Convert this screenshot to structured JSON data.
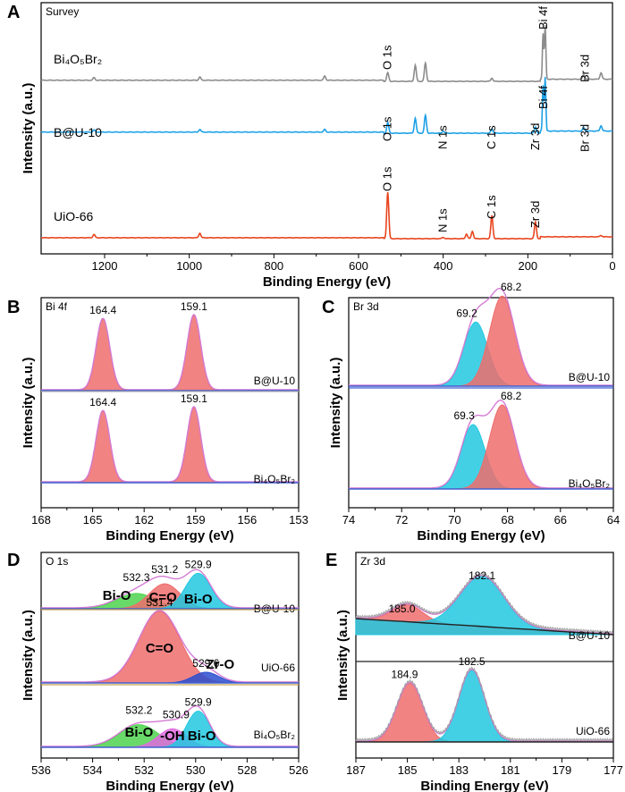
{
  "figure": {
    "colors": {
      "gray": "#8c8c8c",
      "blue": "#1ea1e6",
      "red": "#e8451e",
      "red_fill": "#ee6d6d",
      "cyan_fill": "#22c8e0",
      "green_fill": "#4fd34f",
      "violet_fill": "#e06ae0",
      "blue_fill": "#2a4fd0",
      "envelope": "#d47bd4",
      "baseline": "#4060d0",
      "gray_curve": "#a0a0a0"
    }
  },
  "chart_data": [
    {
      "panel": "A",
      "type": "line",
      "tag": "Survey",
      "xlabel": "Binding Energy (eV)",
      "ylabel": "Intensity (a.u.)",
      "xlim": [
        1350,
        0
      ],
      "xticks": [
        "1200",
        "1000",
        "800",
        "600",
        "400",
        "200",
        "0"
      ],
      "series": [
        {
          "name": "Bi₄O₅Br₂",
          "color": "gray",
          "peaks": [
            {
              "x": 1225,
              "h": 0.05
            },
            {
              "x": 975,
              "h": 0.06
            },
            {
              "x": 680,
              "h": 0.08
            },
            {
              "x": 531,
              "h": 0.16
            },
            {
              "x": 466,
              "h": 0.3
            },
            {
              "x": 442,
              "h": 0.34
            },
            {
              "x": 285,
              "h": 0.06
            },
            {
              "x": 159,
              "h": 1.0
            },
            {
              "x": 164,
              "h": 0.85
            },
            {
              "x": 68,
              "h": 0.08
            },
            {
              "x": 27,
              "h": 0.12
            }
          ],
          "annotations": [
            "O 1s",
            "Bi 4f",
            "Br 3d"
          ]
        },
        {
          "name": "B@U-10",
          "color": "blue",
          "peaks": [
            {
              "x": 1225,
              "h": 0.04
            },
            {
              "x": 975,
              "h": 0.05
            },
            {
              "x": 680,
              "h": 0.05
            },
            {
              "x": 531,
              "h": 0.2
            },
            {
              "x": 466,
              "h": 0.28
            },
            {
              "x": 442,
              "h": 0.33
            },
            {
              "x": 400,
              "h": 0.04
            },
            {
              "x": 285,
              "h": 0.08
            },
            {
              "x": 182,
              "h": 0.12
            },
            {
              "x": 159,
              "h": 1.0
            },
            {
              "x": 164,
              "h": 0.85
            },
            {
              "x": 68,
              "h": 0.06
            },
            {
              "x": 27,
              "h": 0.1
            }
          ],
          "annotations": [
            "O 1s",
            "N 1s",
            "C 1s",
            "Zr 3d",
            "Bi 4f",
            "Br 3d"
          ]
        },
        {
          "name": "UiO-66",
          "color": "red",
          "peaks": [
            {
              "x": 1225,
              "h": 0.07
            },
            {
              "x": 975,
              "h": 0.1
            },
            {
              "x": 531,
              "h": 1.0
            },
            {
              "x": 400,
              "h": 0.03
            },
            {
              "x": 345,
              "h": 0.1
            },
            {
              "x": 331,
              "h": 0.16
            },
            {
              "x": 285,
              "h": 0.5
            },
            {
              "x": 182,
              "h": 0.36
            },
            {
              "x": 27,
              "h": 0.03
            }
          ],
          "annotations": [
            "O 1s",
            "N 1s",
            "C 1s",
            "Zr 3d"
          ]
        }
      ]
    },
    {
      "panel": "B",
      "type": "area",
      "tag": "Bi 4f",
      "xlabel": "Binding Energy (eV)",
      "ylabel": "Intensity (a.u.)",
      "xlim": [
        168,
        153
      ],
      "xticks": [
        "168",
        "165",
        "162",
        "159",
        "156",
        "153"
      ],
      "series": [
        {
          "name": "B@U-10",
          "peaks": [
            {
              "x": 164.4,
              "h": 0.95,
              "w": 0.4,
              "fill": "red_fill",
              "label": "164.4"
            },
            {
              "x": 159.1,
              "h": 1.0,
              "w": 0.4,
              "fill": "red_fill",
              "label": "159.1"
            }
          ]
        },
        {
          "name": "Bi₄O₅Br₂",
          "peaks": [
            {
              "x": 164.4,
              "h": 0.95,
              "w": 0.4,
              "fill": "red_fill",
              "label": "164.4"
            },
            {
              "x": 159.1,
              "h": 1.0,
              "w": 0.4,
              "fill": "red_fill",
              "label": "159.1"
            }
          ]
        }
      ]
    },
    {
      "panel": "C",
      "type": "area",
      "tag": "Br 3d",
      "xlabel": "Binding Energy (eV)",
      "ylabel": "Intensity (a.u.)",
      "xlim": [
        74,
        64
      ],
      "xticks": [
        "74",
        "72",
        "70",
        "68",
        "66",
        "64"
      ],
      "series": [
        {
          "name": "B@U-10",
          "peaks": [
            {
              "x": 69.2,
              "h": 0.64,
              "w": 0.45,
              "fill": "cyan_fill",
              "label": "69.2"
            },
            {
              "x": 68.2,
              "h": 0.9,
              "w": 0.48,
              "fill": "red_fill",
              "label": "68.2"
            }
          ]
        },
        {
          "name": "Bi₄O₅Br₂",
          "peaks": [
            {
              "x": 69.3,
              "h": 0.72,
              "w": 0.45,
              "fill": "cyan_fill",
              "label": "69.3"
            },
            {
              "x": 68.2,
              "h": 0.94,
              "w": 0.48,
              "fill": "red_fill",
              "label": "68.2"
            }
          ]
        }
      ]
    },
    {
      "panel": "D",
      "type": "area",
      "tag": "O 1s",
      "xlabel": "Binding Energy (eV)",
      "ylabel": "Intensity (a.u.)",
      "xlim": [
        536,
        526
      ],
      "xticks": [
        "536",
        "534",
        "532",
        "530",
        "528",
        "526"
      ],
      "series": [
        {
          "name": "B@U-10",
          "peaks": [
            {
              "x": 532.3,
              "h": 0.38,
              "w": 0.75,
              "fill": "green_fill",
              "label": "532.3",
              "band": "Bi-O"
            },
            {
              "x": 531.2,
              "h": 0.62,
              "w": 0.6,
              "fill": "red_fill",
              "label": "531.2",
              "band": "C=O"
            },
            {
              "x": 529.9,
              "h": 0.88,
              "w": 0.5,
              "fill": "cyan_fill",
              "label": "529.9",
              "band": "Bi-O"
            }
          ]
        },
        {
          "name": "UiO-66",
          "peaks": [
            {
              "x": 531.4,
              "h": 1.0,
              "w": 0.8,
              "fill": "red_fill",
              "label": "531.4",
              "band": "C=O"
            },
            {
              "x": 529.6,
              "h": 0.15,
              "w": 0.5,
              "fill": "blue_fill",
              "label": "529.6",
              "band": "Zr-O"
            }
          ]
        },
        {
          "name": "Bi₄O₅Br₂",
          "peaks": [
            {
              "x": 532.2,
              "h": 0.55,
              "w": 0.75,
              "fill": "green_fill",
              "label": "532.2",
              "band": "Bi-O"
            },
            {
              "x": 530.9,
              "h": 0.45,
              "w": 0.55,
              "fill": "violet_fill",
              "label": "530.9",
              "band": "-OH"
            },
            {
              "x": 529.9,
              "h": 0.88,
              "w": 0.45,
              "fill": "cyan_fill",
              "label": "529.9",
              "band": "Bi-O"
            }
          ]
        }
      ]
    },
    {
      "panel": "E",
      "type": "area",
      "tag": "Zr 3d",
      "xlabel": "Binding Energy (eV)",
      "ylabel": "Intensity (a.u.)",
      "xlim": [
        187,
        177
      ],
      "xticks": [
        "187",
        "185",
        "183",
        "181",
        "179",
        "177"
      ],
      "series": [
        {
          "name": "B@U-10",
          "peaks": [
            {
              "x": 185.0,
              "h": 0.34,
              "w": 0.6,
              "fill": "red_fill",
              "label": "185.0"
            },
            {
              "x": 182.1,
              "h": 1.0,
              "w": 0.85,
              "fill": "cyan_fill",
              "label": "182.1"
            }
          ]
        },
        {
          "name": "UiO-66",
          "peaks": [
            {
              "x": 184.9,
              "h": 0.82,
              "w": 0.5,
              "fill": "red_fill",
              "label": "184.9"
            },
            {
              "x": 182.5,
              "h": 1.0,
              "w": 0.5,
              "fill": "cyan_fill",
              "label": "182.5"
            }
          ]
        }
      ]
    }
  ]
}
